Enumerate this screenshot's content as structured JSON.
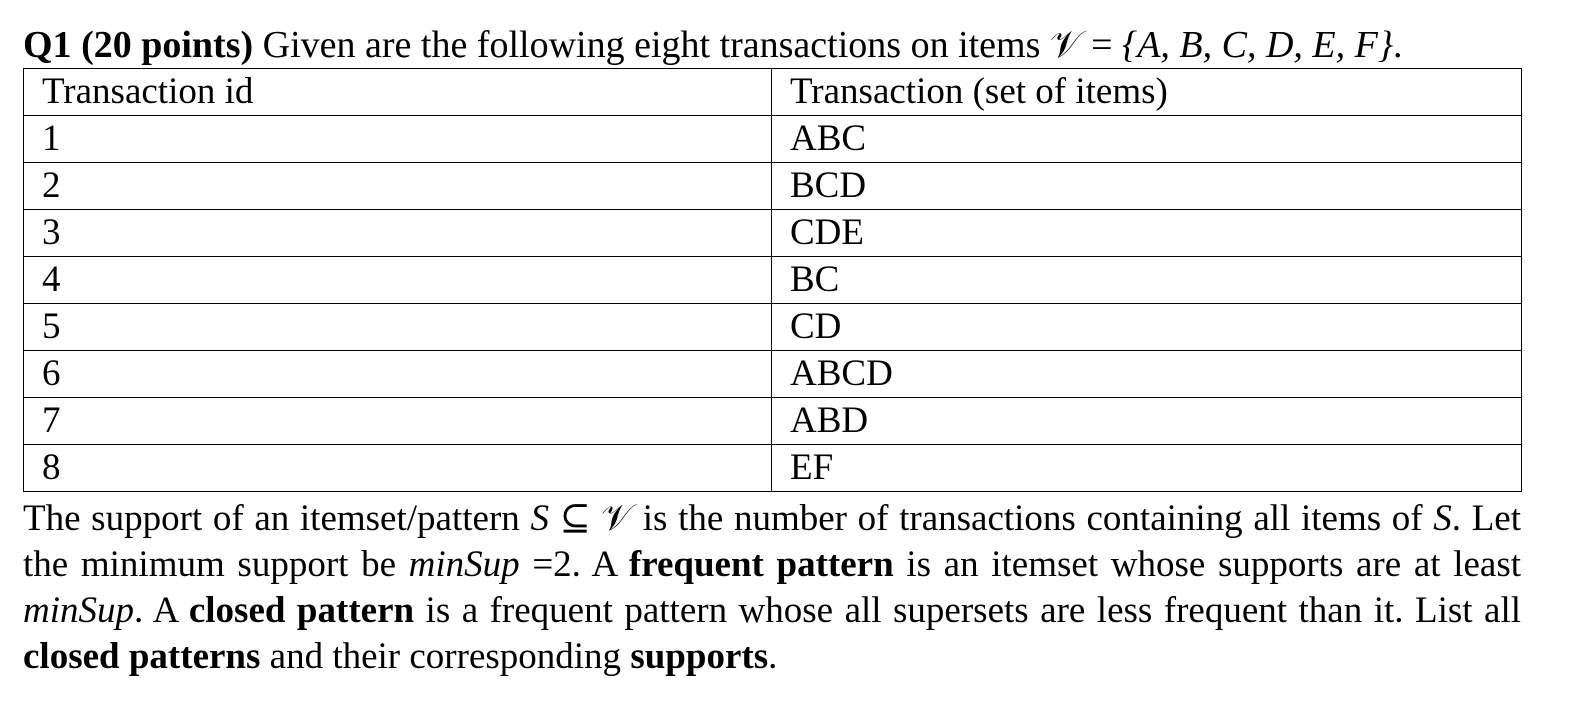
{
  "question": {
    "number": "Q1",
    "points": "(20 points)",
    "intro": " Given are the following eight transactions on items ",
    "set_symbol": "𝒱",
    "set_equals": " = ",
    "set_items": "{A, B, C, D, E, F}",
    "end": "."
  },
  "table": {
    "headers": [
      "Transaction id",
      "Transaction (set of items)"
    ],
    "rows": [
      {
        "id": "1",
        "items": "ABC"
      },
      {
        "id": "2",
        "items": "BCD"
      },
      {
        "id": "3",
        "items": "CDE"
      },
      {
        "id": "4",
        "items": "BC"
      },
      {
        "id": "5",
        "items": "CD"
      },
      {
        "id": "6",
        "items": "ABCD"
      },
      {
        "id": "7",
        "items": "ABD"
      },
      {
        "id": "8",
        "items": "EF"
      }
    ]
  },
  "paragraph": {
    "p1": "The support of an itemset/pattern ",
    "s1": "S",
    "subset": " ⊆ ",
    "v1": "𝒱",
    "p2": " is the number of transactions containing all items of ",
    "s2": "S",
    "p3": ". Let the minimum support be ",
    "minsup1": "minSup",
    "p4": " =2. A ",
    "b1": "frequent pattern",
    "p5": " is an itemset whose supports are at least ",
    "minsup2": "minSup",
    "p6": ". A ",
    "b2": "closed pattern",
    "p7": " is a frequent pattern whose all supersets are less frequent than it. List all ",
    "b3": "closed patterns",
    "p8": " and their corresponding ",
    "b4": "supports",
    "p9": "."
  }
}
